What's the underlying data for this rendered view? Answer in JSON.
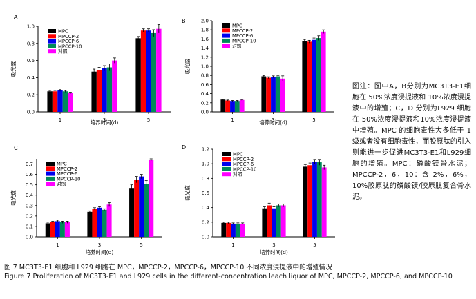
{
  "figure_note": "图注：图中A，B分别为MC3T3-E1细胞在 50%浓度浸提液和 10%浓度浸提液中的增殖；C，D 分别为L929 细胞在 50%浓度浸提液和10%浓度浸提液中增殖。MPC 的细胞毒性大多低于 1 级或者没有细胞毒性，而胶原肽的引入则能进一步促进MC3T3-E1和L929细胞的增殖。MPC：磷酸镁骨水泥；MPCCP-2，6，10：含 2%，6%，10%胶原肽的磷酸镁/胶原肽复合骨水泥。",
  "caption_cn": "图 7   MC3T3-E1 细胞和 L929 细胞在 MPC，MPCCP-2，MPCCP-6，MPCCP-10 不同浓度浸提液中的增殖情况",
  "caption_en": "Figure 7   Proliferation of MC3T3-E1 and L929 cells in the different-concentration leach liquor of MPC, MPCCP-2, MPCCP-6, and MPCCP-10",
  "colors": {
    "MPC": "#000000",
    "MPCCP-2": "#ff0000",
    "MPCCP-6": "#0000ee",
    "MPCCP-10": "#008a5a",
    "对照": "#ff00ff"
  },
  "chart_data": [
    {
      "type": "bar",
      "panel": "A",
      "ylabel": "吸光度",
      "xlabel": "培养时间(d)",
      "categories": [
        "1",
        "3",
        "5"
      ],
      "ylim": [
        0,
        1.0
      ],
      "yticks": [
        "0.0",
        "0.2",
        "0.4",
        "0.6",
        "0.8",
        "1.0"
      ],
      "ytick_values": [
        0,
        0.2,
        0.4,
        0.6,
        0.8,
        1.0
      ],
      "legend_position": "top-left",
      "series": [
        {
          "name": "MPC",
          "values": [
            0.24,
            0.47,
            0.86
          ],
          "errors": [
            0.01,
            0.03,
            0.02
          ]
        },
        {
          "name": "MPCCP-2",
          "values": [
            0.24,
            0.49,
            0.95
          ],
          "errors": [
            0.01,
            0.03,
            0.02
          ]
        },
        {
          "name": "MPCCP-6",
          "values": [
            0.25,
            0.51,
            0.95
          ],
          "errors": [
            0.01,
            0.03,
            0.02
          ]
        },
        {
          "name": "MPCCP-10",
          "values": [
            0.24,
            0.52,
            0.92
          ],
          "errors": [
            0.01,
            0.04,
            0.04
          ]
        },
        {
          "name": "对照",
          "values": [
            0.22,
            0.6,
            0.97
          ],
          "errors": [
            0.01,
            0.03,
            0.05
          ]
        }
      ]
    },
    {
      "type": "bar",
      "panel": "B",
      "ylabel": "吸光度",
      "xlabel": "培养时间(d)",
      "categories": [
        "1",
        "3",
        "5"
      ],
      "ylim": [
        0,
        2.0
      ],
      "yticks": [
        "0.0",
        "0.2",
        "0.4",
        "0.6",
        "0.8",
        "1.0",
        "1.2",
        "1.4",
        "1.6",
        "1.8",
        "2.0"
      ],
      "ytick_values": [
        0,
        0.2,
        0.4,
        0.6,
        0.8,
        1.0,
        1.2,
        1.4,
        1.6,
        1.8,
        2.0
      ],
      "legend_position": "top-left",
      "series": [
        {
          "name": "MPC",
          "values": [
            0.27,
            0.78,
            1.56
          ],
          "errors": [
            0.01,
            0.02,
            0.03
          ]
        },
        {
          "name": "MPCCP-2",
          "values": [
            0.25,
            0.75,
            1.54
          ],
          "errors": [
            0.01,
            0.02,
            0.03
          ]
        },
        {
          "name": "MPCCP-6",
          "values": [
            0.24,
            0.77,
            1.58
          ],
          "errors": [
            0.01,
            0.02,
            0.04
          ]
        },
        {
          "name": "MPCCP-10",
          "values": [
            0.24,
            0.78,
            1.62
          ],
          "errors": [
            0.01,
            0.02,
            0.05
          ]
        },
        {
          "name": "对照",
          "values": [
            0.26,
            0.73,
            1.76
          ],
          "errors": [
            0.01,
            0.06,
            0.04
          ]
        }
      ]
    },
    {
      "type": "bar",
      "panel": "C",
      "ylabel": "吸光度",
      "xlabel": "培养时间(d)",
      "categories": [
        "1",
        "3",
        "5"
      ],
      "ylim": [
        0,
        0.75
      ],
      "yticks": [
        "0.0",
        "0.1",
        "0.2",
        "0.3",
        "0.4",
        "0.5",
        "0.6",
        "0.7"
      ],
      "ytick_values": [
        0,
        0.1,
        0.2,
        0.3,
        0.4,
        0.5,
        0.6,
        0.7
      ],
      "legend_position": "top-left",
      "series": [
        {
          "name": "MPC",
          "values": [
            0.13,
            0.24,
            0.47
          ],
          "errors": [
            0.01,
            0.01,
            0.03
          ]
        },
        {
          "name": "MPCCP-2",
          "values": [
            0.14,
            0.27,
            0.55
          ],
          "errors": [
            0.01,
            0.01,
            0.03
          ]
        },
        {
          "name": "MPCCP-6",
          "values": [
            0.15,
            0.28,
            0.58
          ],
          "errors": [
            0.01,
            0.01,
            0.02
          ]
        },
        {
          "name": "MPCCP-10",
          "values": [
            0.14,
            0.26,
            0.51
          ],
          "errors": [
            0.01,
            0.01,
            0.03
          ]
        },
        {
          "name": "对照",
          "values": [
            0.14,
            0.31,
            0.74
          ],
          "errors": [
            0.01,
            0.02,
            0.01
          ]
        }
      ]
    },
    {
      "type": "bar",
      "panel": "D",
      "ylabel": "吸光度",
      "xlabel": "培养时间(d)",
      "categories": [
        "1",
        "3",
        "5"
      ],
      "ylim": [
        0,
        1.2
      ],
      "yticks": [
        "0.0",
        "0.2",
        "0.4",
        "0.6",
        "0.8",
        "1.0",
        "1.2"
      ],
      "ytick_values": [
        0,
        0.2,
        0.4,
        0.6,
        0.8,
        1.0,
        1.2
      ],
      "legend_position": "top-left",
      "series": [
        {
          "name": "MPC",
          "values": [
            0.19,
            0.39,
            0.96
          ],
          "errors": [
            0.01,
            0.02,
            0.03
          ]
        },
        {
          "name": "MPCCP-2",
          "values": [
            0.19,
            0.43,
            0.98
          ],
          "errors": [
            0.01,
            0.03,
            0.03
          ]
        },
        {
          "name": "MPCCP-6",
          "values": [
            0.18,
            0.39,
            1.03
          ],
          "errors": [
            0.01,
            0.02,
            0.03
          ]
        },
        {
          "name": "MPCCP-10",
          "values": [
            0.18,
            0.43,
            1.02
          ],
          "errors": [
            0.01,
            0.02,
            0.04
          ]
        },
        {
          "name": "对照",
          "values": [
            0.18,
            0.43,
            0.95
          ],
          "errors": [
            0.01,
            0.02,
            0.03
          ]
        }
      ]
    }
  ]
}
